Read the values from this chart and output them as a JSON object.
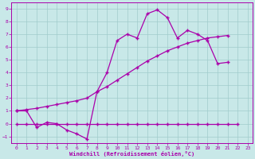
{
  "xlabel": "Windchill (Refroidissement éolien,°C)",
  "xlim": [
    -0.5,
    23.5
  ],
  "ylim": [
    -1.5,
    9.5
  ],
  "xticks": [
    0,
    1,
    2,
    3,
    4,
    5,
    6,
    7,
    8,
    9,
    10,
    11,
    12,
    13,
    14,
    15,
    16,
    17,
    18,
    19,
    20,
    21,
    22,
    23
  ],
  "yticks": [
    -1,
    0,
    1,
    2,
    3,
    4,
    5,
    6,
    7,
    8,
    9
  ],
  "line_color": "#aa00aa",
  "background_color": "#c8e8e8",
  "grid_color": "#a0cccc",
  "lx_jagged": [
    0,
    1,
    2,
    3,
    4,
    5,
    6,
    7,
    8,
    9,
    10,
    11,
    12,
    13,
    14,
    15,
    16,
    17,
    18,
    19,
    20,
    21
  ],
  "ly_jagged": [
    1.0,
    1.0,
    -0.3,
    0.1,
    0.0,
    -0.5,
    -0.8,
    -1.2,
    2.5,
    4.0,
    6.5,
    7.0,
    6.7,
    8.6,
    8.9,
    8.3,
    6.7,
    7.3,
    7.0,
    6.5,
    4.7,
    4.8
  ],
  "lx_diag1": [
    0,
    1,
    2,
    3,
    4,
    5,
    6,
    7,
    8,
    9,
    10,
    11,
    12,
    13,
    14,
    15,
    16,
    17,
    18,
    19,
    20,
    21
  ],
  "ly_diag1": [
    1.0,
    1.1,
    1.2,
    1.35,
    1.5,
    1.65,
    1.8,
    2.0,
    2.5,
    2.9,
    3.4,
    3.9,
    4.4,
    4.9,
    5.3,
    5.7,
    6.0,
    6.3,
    6.5,
    6.7,
    6.8,
    6.9
  ],
  "lx_flat": [
    0,
    1,
    2,
    3,
    4,
    5,
    6,
    7,
    8,
    9,
    10,
    11,
    12,
    13,
    14,
    15,
    16,
    17,
    18,
    19,
    20,
    21,
    22
  ],
  "ly_flat": [
    0.0,
    0.0,
    0.0,
    0.0,
    0.0,
    0.0,
    0.0,
    0.0,
    0.0,
    0.0,
    0.0,
    0.0,
    0.0,
    0.0,
    0.0,
    0.0,
    0.0,
    0.0,
    0.0,
    0.0,
    0.0,
    0.0,
    0.0
  ]
}
